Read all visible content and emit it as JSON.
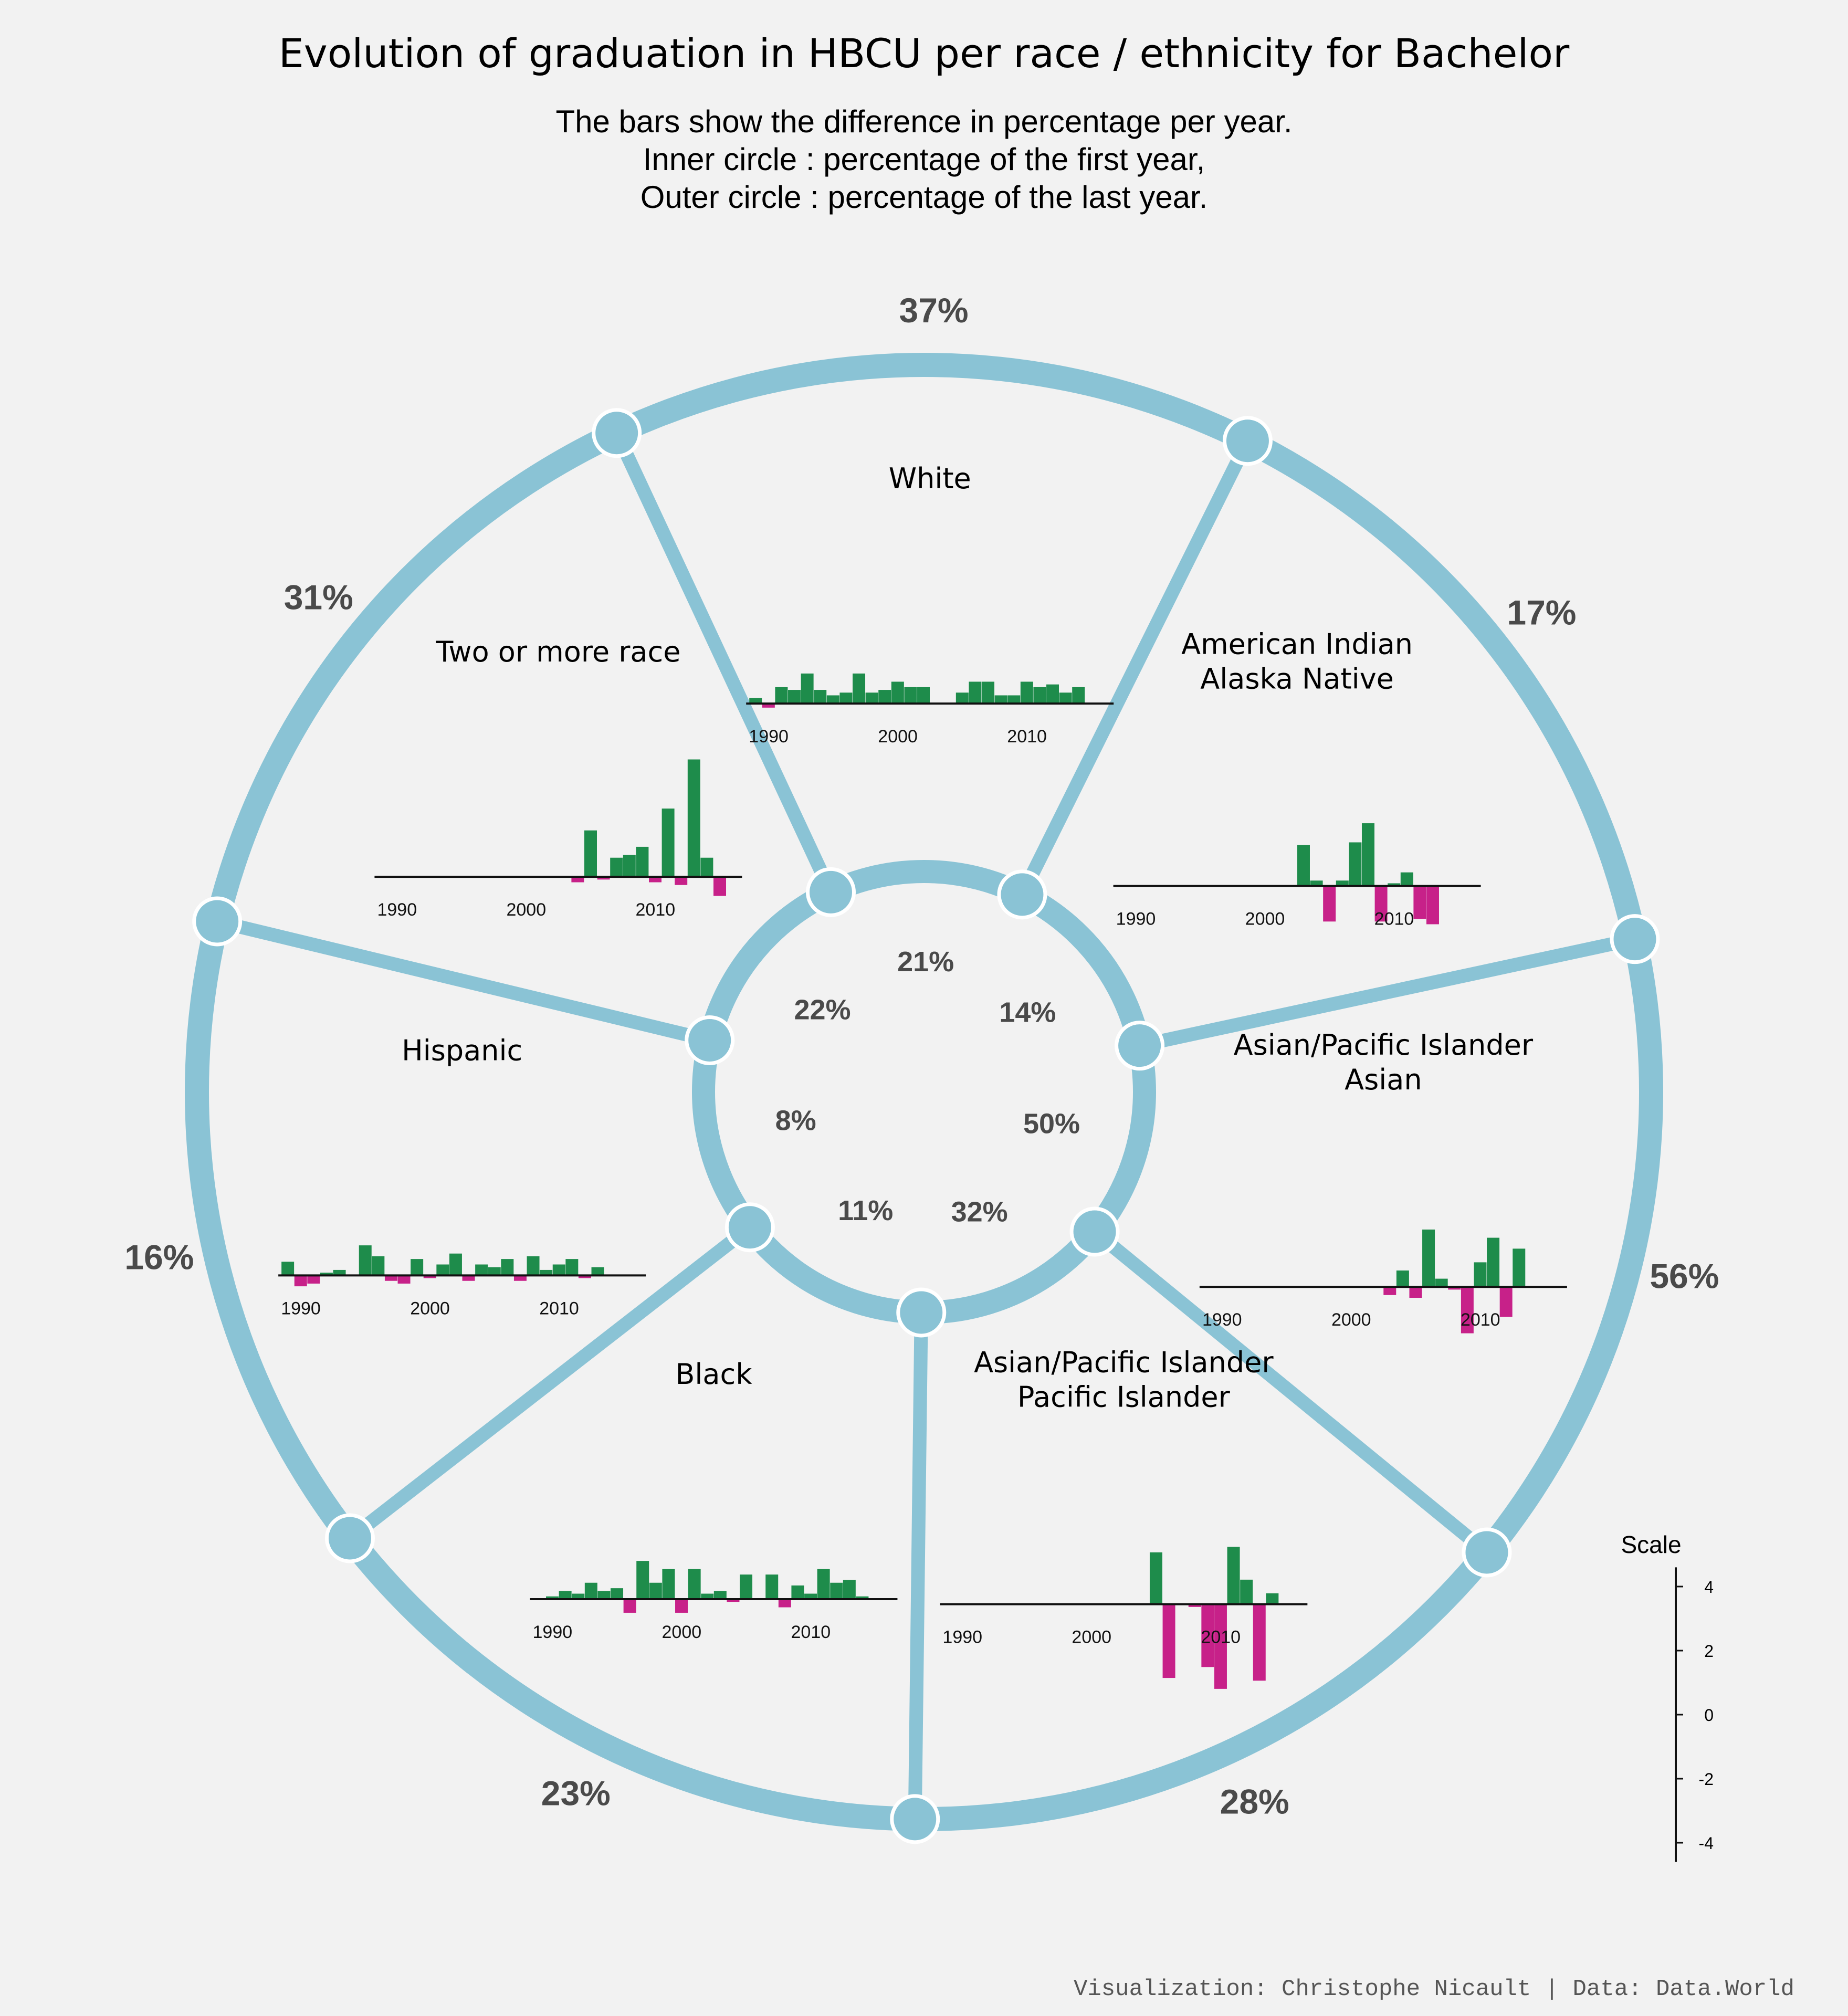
{
  "title": "Evolution of graduation in HBCU per race / ethnicity for Bachelor",
  "subtitle_lines": [
    "The bars show the difference in percentage per year.",
    "Inner circle : percentage of the first year,",
    "Outer circle : percentage of the last year."
  ],
  "caption": "Visualization: Christophe Nicault | Data: Data.World",
  "colors": {
    "background": "#f2f2f2",
    "ring": "#8ac3d5",
    "positive": "#1e8c4b",
    "negative": "#c72189",
    "percent_text": "#4a4a4a"
  },
  "scale_legend": {
    "title": "Scale",
    "ticks": [
      4,
      2,
      0,
      -2,
      -4
    ]
  },
  "chart_data": {
    "type": "bar",
    "x_ticks": [
      1990,
      2000,
      2010
    ],
    "groups": [
      {
        "name": "White",
        "first_year_pct": "21%",
        "last_year_pct": "37%",
        "values": [
          0.2,
          -0.15,
          0.6,
          0.5,
          1.1,
          0.5,
          0.3,
          0.4,
          1.1,
          0.4,
          0.5,
          0.8,
          0.6,
          0.6,
          0,
          0,
          0.4,
          0.8,
          0.8,
          0.3,
          0.3,
          0.8,
          0.6,
          0.7,
          0.4,
          0.6
        ]
      },
      {
        "name": "American Indian\nAlaska Native",
        "first_year_pct": "14%",
        "last_year_pct": "17%",
        "values": [
          0,
          0,
          0,
          0,
          0,
          0,
          0,
          0,
          0,
          0,
          0,
          0,
          0,
          0,
          1.5,
          0.2,
          -1.3,
          0.2,
          1.6,
          2.3,
          -1.3,
          0.1,
          0.5,
          -1.2,
          -1.4
        ]
      },
      {
        "name": "Asian/Pacific Islander\nAsian",
        "first_year_pct": "50%",
        "last_year_pct": "56%",
        "values": [
          0,
          0,
          0,
          0,
          0,
          0,
          0,
          0,
          0,
          0,
          0,
          0,
          0,
          0,
          -0.3,
          0.6,
          -0.4,
          2.1,
          0.3,
          -0.1,
          -1.7,
          0.9,
          1.8,
          -1.1,
          1.4
        ]
      },
      {
        "name": "Asian/Pacific Islander\nPacific Islander",
        "first_year_pct": "32%",
        "last_year_pct": "28%",
        "values": [
          0,
          0,
          0,
          0,
          0,
          0,
          0,
          0,
          0,
          0,
          0,
          0,
          0,
          0,
          0,
          0,
          1.9,
          -2.7,
          0,
          -0.1,
          -2.3,
          -3.1,
          2.1,
          0.9,
          -2.8,
          0.4
        ]
      },
      {
        "name": "Black",
        "first_year_pct": "11%",
        "last_year_pct": "23%",
        "values": [
          0,
          0.1,
          0.3,
          0.2,
          0.6,
          0.3,
          0.4,
          -0.5,
          1.4,
          0.6,
          1.1,
          -0.5,
          1.1,
          0.2,
          0.3,
          -0.1,
          0.9,
          0,
          0.9,
          -0.3,
          0.5,
          0.2,
          1.1,
          0.6,
          0.7,
          0.1
        ]
      },
      {
        "name": "Hispanic",
        "first_year_pct": "8%",
        "last_year_pct": "16%",
        "values": [
          0.5,
          -0.4,
          -0.3,
          0.1,
          0.2,
          0,
          1.1,
          0.7,
          -0.2,
          -0.3,
          0.6,
          -0.1,
          0.4,
          0.8,
          -0.2,
          0.4,
          0.3,
          0.6,
          -0.2,
          0.7,
          0.2,
          0.4,
          0.6,
          -0.1,
          0.3
        ]
      },
      {
        "name": "Two or more race",
        "first_year_pct": "22%",
        "last_year_pct": "31%",
        "values": [
          0,
          0,
          0,
          0,
          0,
          0,
          0,
          0,
          0,
          0,
          0,
          0,
          0,
          0,
          0,
          -0.2,
          1.7,
          -0.1,
          0.7,
          0.8,
          1.1,
          -0.2,
          2.5,
          -0.3,
          4.3,
          0.7,
          -0.7
        ]
      }
    ]
  }
}
